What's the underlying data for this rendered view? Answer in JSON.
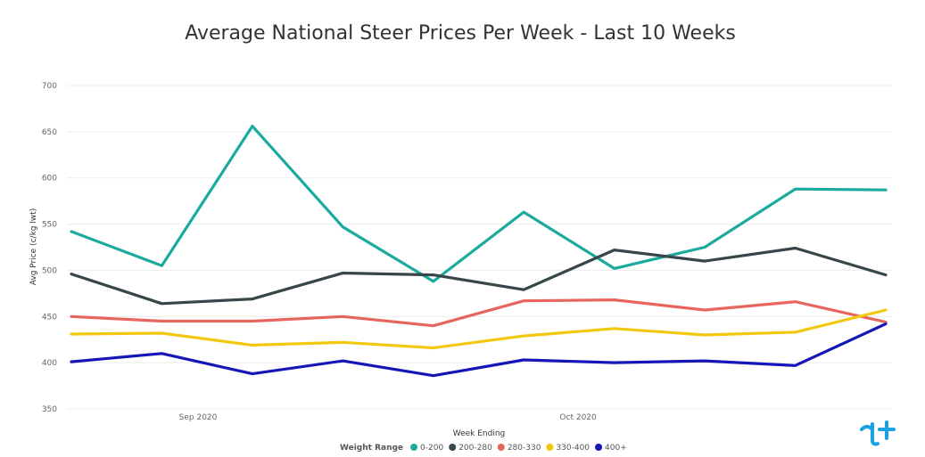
{
  "chart_data": {
    "type": "line",
    "title": "Average National Steer Prices Per Week - Last 10 Weeks",
    "xlabel": "Week Ending",
    "ylabel": "Avg Price (c/kg lwt)",
    "ylim": [
      350,
      700
    ],
    "yticks": [
      "700",
      "650",
      "600",
      "550",
      "500",
      "450",
      "400",
      "350"
    ],
    "x": [
      1,
      2,
      3,
      4,
      5,
      6,
      7,
      8,
      9,
      10
    ],
    "xtick_labels": [
      {
        "label": "Sep 2020",
        "at": 2.4
      },
      {
        "label": "Oct 2020",
        "at": 6.6
      }
    ],
    "grid": true,
    "legend": {
      "title": "Weight Range",
      "position": "bottom"
    },
    "series": [
      {
        "name": "0-200",
        "color": "#1AAB9E",
        "values": [
          542,
          505,
          656,
          547,
          488,
          563,
          502,
          525,
          588,
          587
        ]
      },
      {
        "name": "200-280",
        "color": "#374649",
        "values": [
          496,
          464,
          469,
          497,
          495,
          479,
          522,
          510,
          524,
          495
        ]
      },
      {
        "name": "280-330",
        "color": "#E8655D",
        "values": [
          450,
          445,
          445,
          450,
          440,
          467,
          468,
          457,
          466,
          444
        ]
      },
      {
        "name": "330-400",
        "color": "#F2C80F",
        "values": [
          431,
          432,
          419,
          422,
          416,
          429,
          437,
          430,
          433,
          457
        ]
      },
      {
        "name": "400+",
        "color": "#1616B8",
        "values": [
          401,
          410,
          388,
          402,
          386,
          403,
          400,
          402,
          397,
          442
        ]
      }
    ]
  },
  "brand": {
    "logo_name": "tick-logo-icon",
    "color": "#1AA3E0"
  }
}
